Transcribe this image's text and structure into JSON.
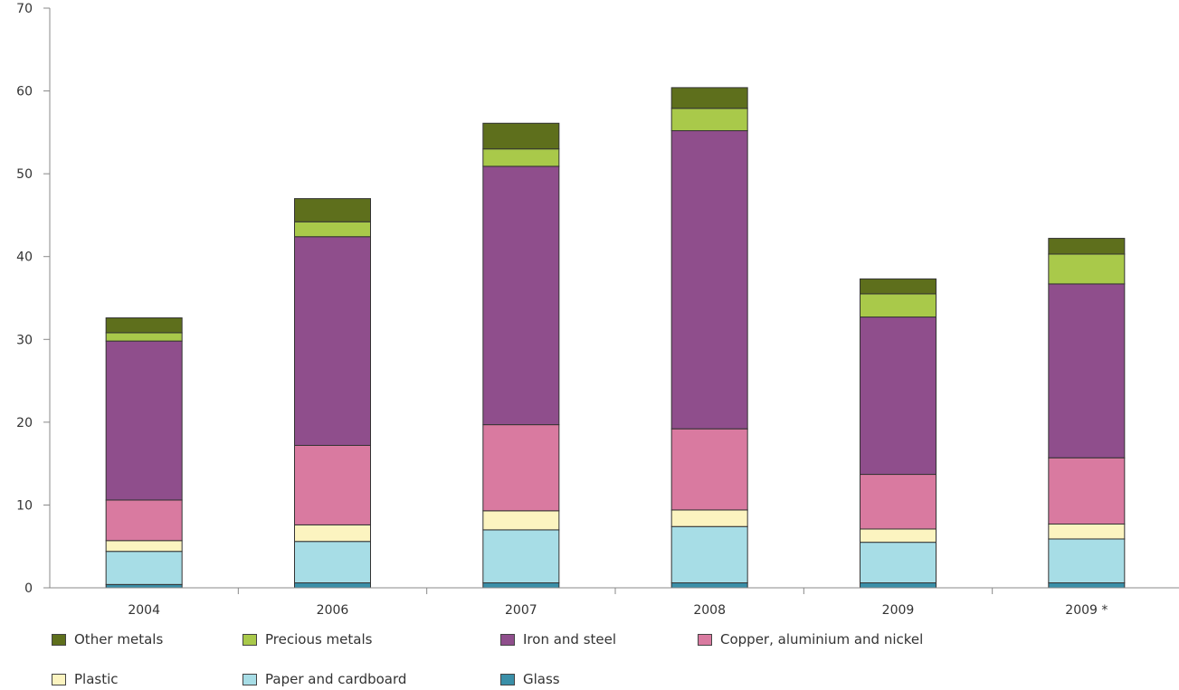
{
  "chart_data": {
    "type": "bar",
    "stacked": true,
    "categories": [
      "2004",
      "2006",
      "2007",
      "2008",
      "2009",
      "2009 *"
    ],
    "ylim": [
      0,
      70
    ],
    "yticks": [
      "0",
      "10",
      "20",
      "30",
      "40",
      "50",
      "60",
      "70"
    ],
    "series": [
      {
        "name": "Glass",
        "color": "#3a8fa8",
        "values": [
          0.4,
          0.6,
          0.6,
          0.6,
          0.6,
          0.6
        ]
      },
      {
        "name": "Paper and cardboard",
        "color": "#a7dde6",
        "values": [
          4.0,
          5.0,
          6.4,
          6.8,
          4.9,
          5.3
        ]
      },
      {
        "name": "Plastic",
        "color": "#fcf4c0",
        "values": [
          1.3,
          2.0,
          2.3,
          2.0,
          1.6,
          1.8
        ]
      },
      {
        "name": "Copper, aluminium and nickel",
        "color": "#d97aa0",
        "values": [
          4.9,
          9.6,
          10.4,
          9.8,
          6.6,
          8.0
        ]
      },
      {
        "name": "Iron and steel",
        "color": "#8f4e8c",
        "values": [
          19.2,
          25.2,
          31.2,
          36.0,
          19.0,
          21.0
        ]
      },
      {
        "name": "Precious metals",
        "color": "#a9c94a",
        "values": [
          1.0,
          1.8,
          2.1,
          2.7,
          2.8,
          3.6
        ]
      },
      {
        "name": "Other metals",
        "color": "#5e6f1c",
        "values": [
          1.8,
          2.8,
          3.1,
          2.5,
          1.8,
          1.9
        ]
      }
    ],
    "legend_order": [
      "Other metals",
      "Precious metals",
      "Iron and steel",
      "Copper, aluminium and nickel",
      "Plastic",
      "Paper and cardboard",
      "Glass"
    ],
    "grid": false,
    "legend_position": "bottom"
  }
}
